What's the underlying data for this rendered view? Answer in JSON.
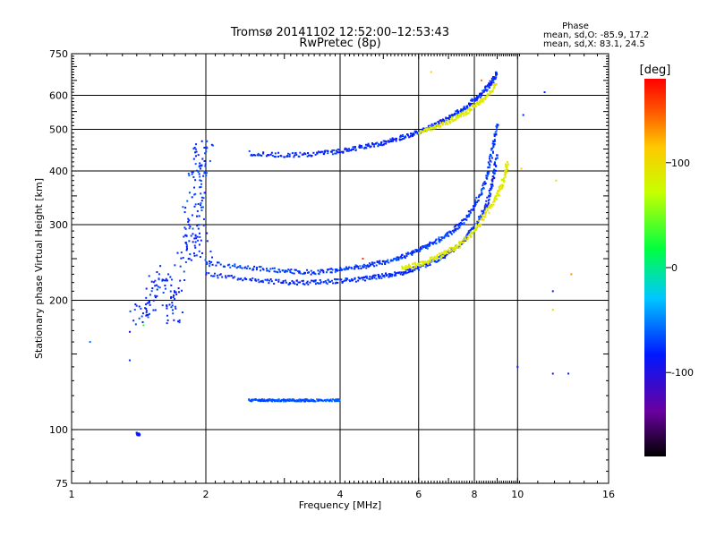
{
  "chart_data": {
    "type": "scatter",
    "title": "Tromsø 20141102 12:52:00–12:53:43",
    "subtitle": "RwPretec (8p)",
    "xlabel": "Frequency [MHz]",
    "ylabel": "Stationary phase Virtual Height [km]",
    "x_scale": "log",
    "y_scale": "log",
    "xlim": [
      1,
      16
    ],
    "ylim": [
      75,
      750
    ],
    "x_ticks": [
      1,
      2,
      4,
      6,
      8,
      10,
      16
    ],
    "y_ticks": [
      75,
      100,
      200,
      300,
      400,
      500,
      600,
      750
    ],
    "grid": true,
    "stats": {
      "heading": "Phase",
      "line_o": "mean, sd,O: -85.9, 17.2",
      "line_x": "mean, sd,X:  83.1, 24.5"
    },
    "colorbar": {
      "label": "[deg]",
      "range": [
        -180,
        180
      ],
      "ticks": [
        100,
        0,
        -100
      ],
      "tick_labels": [
        "100",
        "0",
        "-100"
      ]
    },
    "traces": [
      {
        "x": [
          1.4,
          1.5,
          1.6,
          1.7,
          1.8,
          1.9,
          2.0
        ],
        "y": [
          180,
          200,
          230,
          180,
          260,
          300,
          250
        ],
        "phase": -95,
        "spread": 0.06
      },
      {
        "x": [
          1.85,
          1.9,
          1.95,
          2.0
        ],
        "y": [
          300,
          370,
          420,
          450
        ],
        "phase": -90,
        "spread": 0.07
      },
      {
        "x": [
          2.0,
          2.5,
          3.0,
          3.5,
          4.0,
          4.5,
          5.0,
          5.5,
          6.0,
          6.5,
          7.0,
          7.5,
          8.0,
          8.5,
          8.8,
          9.0
        ],
        "y": [
          230,
          224,
          220,
          220,
          222,
          224,
          228,
          232,
          238,
          246,
          258,
          272,
          295,
          330,
          380,
          440
        ],
        "phase": -95,
        "spread": 0.01
      },
      {
        "x": [
          2.0,
          2.5,
          3.0,
          3.5,
          4.0,
          4.5,
          5.0,
          5.5,
          6.0,
          6.5,
          7.0,
          7.5,
          8.0,
          8.5,
          8.8,
          9.0
        ],
        "y": [
          245,
          238,
          234,
          232,
          236,
          240,
          245,
          252,
          262,
          272,
          285,
          302,
          330,
          380,
          450,
          520
        ],
        "phase": -90,
        "spread": 0.01
      },
      {
        "x": [
          5.5,
          6.0,
          6.5,
          7.0,
          7.5,
          8.0,
          8.5,
          9.0,
          9.3,
          9.5
        ],
        "y": [
          238,
          242,
          250,
          260,
          272,
          290,
          320,
          350,
          380,
          420
        ],
        "phase": 80,
        "spread": 0.012
      },
      {
        "x": [
          2.5,
          3.0,
          3.5,
          4.0,
          4.5,
          5.0,
          5.5,
          6.0,
          6.5,
          7.0,
          7.5,
          8.0,
          8.5,
          8.8,
          9.0
        ],
        "y": [
          440,
          435,
          438,
          445,
          455,
          465,
          478,
          492,
          510,
          530,
          555,
          585,
          620,
          650,
          680
        ],
        "phase": -95,
        "spread": 0.01
      },
      {
        "x": [
          6.0,
          6.5,
          7.0,
          7.5,
          8.0,
          8.5,
          9.0
        ],
        "y": [
          490,
          505,
          520,
          540,
          565,
          595,
          640
        ],
        "phase": 80,
        "spread": 0.01
      },
      {
        "x": [
          2.5,
          2.7,
          2.9,
          3.1,
          3.3,
          3.5,
          3.9,
          4.0
        ],
        "y": [
          117,
          117,
          117,
          117,
          117,
          117,
          117,
          117
        ],
        "phase": -80,
        "spread": 0.005
      },
      {
        "x": [
          1.4,
          1.42
        ],
        "y": [
          98,
          97
        ],
        "phase": -100,
        "spread": 0.005
      }
    ],
    "scatter_points": [
      {
        "x": 1.1,
        "y": 160,
        "phase": -70
      },
      {
        "x": 1.35,
        "y": 145,
        "phase": -95
      },
      {
        "x": 1.45,
        "y": 175,
        "phase": 10
      },
      {
        "x": 10.3,
        "y": 540,
        "phase": -100
      },
      {
        "x": 11.5,
        "y": 610,
        "phase": -100
      },
      {
        "x": 10.0,
        "y": 140,
        "phase": -100
      },
      {
        "x": 12.0,
        "y": 210,
        "phase": -100
      },
      {
        "x": 12.0,
        "y": 190,
        "phase": 100
      },
      {
        "x": 12.0,
        "y": 135,
        "phase": -110
      },
      {
        "x": 13.0,
        "y": 135,
        "phase": -100
      },
      {
        "x": 12.2,
        "y": 380,
        "phase": 80
      },
      {
        "x": 13.2,
        "y": 230,
        "phase": 130
      },
      {
        "x": 10.2,
        "y": 405,
        "phase": 100
      },
      {
        "x": 6.4,
        "y": 680,
        "phase": 100
      },
      {
        "x": 8.3,
        "y": 650,
        "phase": 140
      },
      {
        "x": 4.5,
        "y": 250,
        "phase": 160
      }
    ]
  }
}
